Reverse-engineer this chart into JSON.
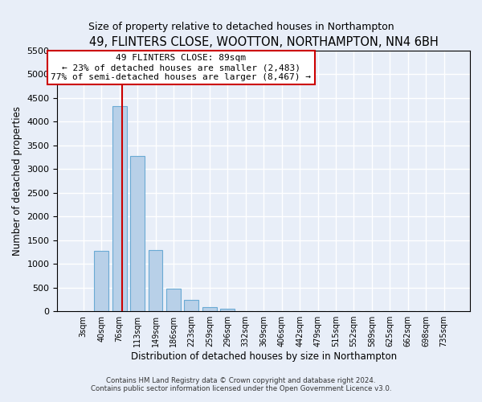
{
  "title": "49, FLINTERS CLOSE, WOOTTON, NORTHAMPTON, NN4 6BH",
  "subtitle": "Size of property relative to detached houses in Northampton",
  "xlabel": "Distribution of detached houses by size in Northampton",
  "ylabel": "Number of detached properties",
  "bar_color": "#b8d0e8",
  "bar_edge_color": "#6aaad4",
  "categories": [
    "3sqm",
    "40sqm",
    "76sqm",
    "113sqm",
    "149sqm",
    "186sqm",
    "223sqm",
    "259sqm",
    "296sqm",
    "332sqm",
    "369sqm",
    "406sqm",
    "442sqm",
    "479sqm",
    "515sqm",
    "552sqm",
    "589sqm",
    "625sqm",
    "662sqm",
    "698sqm",
    "735sqm"
  ],
  "values": [
    0,
    1270,
    4330,
    3280,
    1290,
    480,
    235,
    90,
    50,
    0,
    0,
    0,
    0,
    0,
    0,
    0,
    0,
    0,
    0,
    0,
    0
  ],
  "ylim": [
    0,
    5500
  ],
  "yticks": [
    0,
    500,
    1000,
    1500,
    2000,
    2500,
    3000,
    3500,
    4000,
    4500,
    5000,
    5500
  ],
  "annotation_line1": "49 FLINTERS CLOSE: 89sqm",
  "annotation_line2": "← 23% of detached houses are smaller (2,483)",
  "annotation_line3": "77% of semi-detached houses are larger (8,467) →",
  "annotation_box_facecolor": "white",
  "annotation_box_edgecolor": "#cc0000",
  "vline_color": "#cc0000",
  "vline_x_data": 2.15,
  "footer1": "Contains HM Land Registry data © Crown copyright and database right 2024.",
  "footer2": "Contains public sector information licensed under the Open Government Licence v3.0.",
  "background_color": "#e8eef8",
  "grid_color": "white"
}
